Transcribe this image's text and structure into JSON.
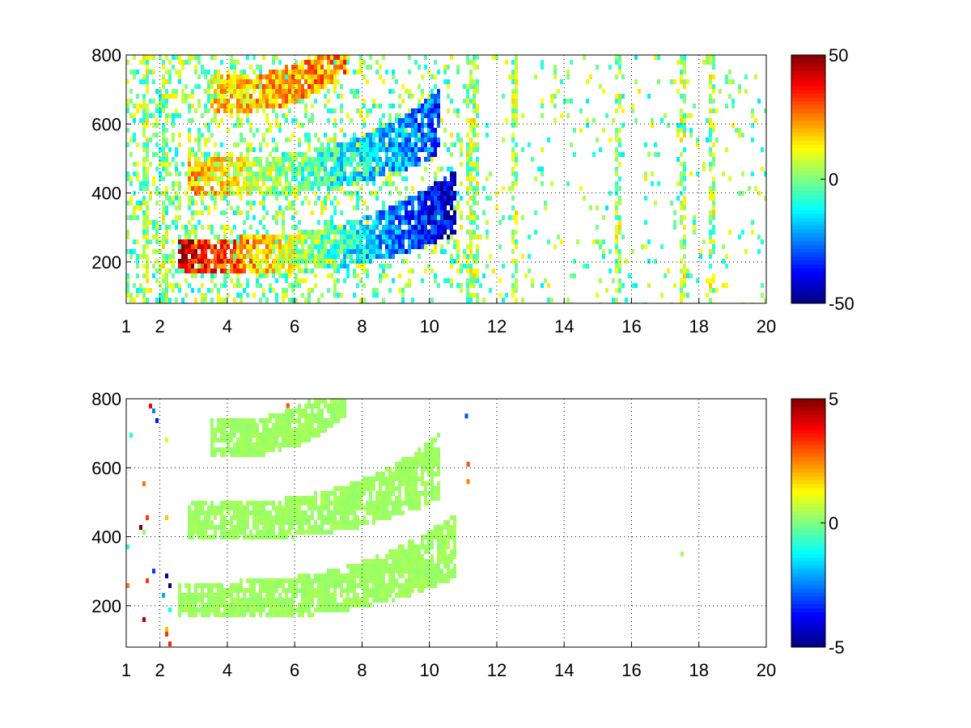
{
  "chart_data": [
    {
      "type": "heatmap",
      "title": "",
      "xlabel": "",
      "ylabel": "",
      "xlim": [
        1,
        20
      ],
      "ylim": [
        80,
        800
      ],
      "grid": true,
      "x_ticks": [
        1,
        2,
        4,
        6,
        8,
        10,
        12,
        14,
        16,
        18,
        20
      ],
      "x_tick_labels": [
        "1",
        "2",
        "4",
        "6",
        "8",
        "10",
        "12",
        "14",
        "16",
        "18",
        "20"
      ],
      "y_ticks": [
        200,
        400,
        600,
        800
      ],
      "y_tick_labels": [
        "200",
        "400",
        "600",
        "800"
      ],
      "colorbar": {
        "colormap": "jet",
        "range": [
          -50,
          50
        ],
        "tick_values": [
          50,
          0,
          -50
        ],
        "tick_labels": [
          "50",
          "0",
          "-50"
        ]
      },
      "features": [
        {
          "name": "",
          "y_start": 220,
          "y_end": 380,
          "x_start": 2.5,
          "x_end": 10.8,
          "value_early": 45,
          "value_late": -45
        },
        {
          "name": "",
          "y_start": 450,
          "y_end": 610,
          "x_start": 2.8,
          "x_end": 10.3,
          "value_early": 20,
          "value_late": -30
        },
        {
          "name": "",
          "y_start": 690,
          "y_end": 790,
          "x_start": 3.5,
          "x_end": 7.5,
          "value_early": 15,
          "value_late": 25
        }
      ],
      "vertical_streaks_x": [
        1.6,
        2.1,
        2.2,
        7.2,
        11.2,
        11.4,
        12.5,
        15.6,
        17.5,
        18.4
      ],
      "noise_x_range": [
        11,
        20
      ]
    },
    {
      "type": "heatmap",
      "title": "",
      "xlabel": "",
      "ylabel": "",
      "xlim": [
        1,
        20
      ],
      "ylim": [
        80,
        800
      ],
      "grid": true,
      "x_ticks": [
        1,
        2,
        4,
        6,
        8,
        10,
        12,
        14,
        16,
        18,
        20
      ],
      "x_tick_labels": [
        "1",
        "2",
        "4",
        "6",
        "8",
        "10",
        "12",
        "14",
        "16",
        "18",
        "20"
      ],
      "y_ticks": [
        200,
        400,
        600,
        800
      ],
      "y_tick_labels": [
        "200",
        "400",
        "600",
        "800"
      ],
      "colorbar": {
        "colormap": "jet",
        "range": [
          -5,
          5
        ],
        "tick_values": [
          5,
          0,
          -5
        ],
        "tick_labels": [
          "5",
          "0",
          "-5"
        ]
      },
      "features": [
        {
          "name": "",
          "y_start": 220,
          "y_end": 380,
          "x_start": 2.5,
          "x_end": 10.8,
          "value_early": 0.3,
          "value_late": 0.3
        },
        {
          "name": "",
          "y_start": 450,
          "y_end": 610,
          "x_start": 2.8,
          "x_end": 10.3,
          "value_early": 0.3,
          "value_late": 0.3
        },
        {
          "name": "",
          "y_start": 690,
          "y_end": 790,
          "x_start": 3.5,
          "x_end": 7.5,
          "value_early": 0.3,
          "value_late": 0.3
        }
      ],
      "outliers": [
        {
          "x": 11.1,
          "y": 750,
          "value": -3
        },
        {
          "x": 11.15,
          "y": 610,
          "value": 3
        },
        {
          "x": 11.15,
          "y": 560,
          "value": 2.5
        },
        {
          "x": 17.5,
          "y": 350,
          "value": 0.3
        },
        {
          "x": 5.8,
          "y": 780,
          "value": 3
        }
      ]
    }
  ]
}
